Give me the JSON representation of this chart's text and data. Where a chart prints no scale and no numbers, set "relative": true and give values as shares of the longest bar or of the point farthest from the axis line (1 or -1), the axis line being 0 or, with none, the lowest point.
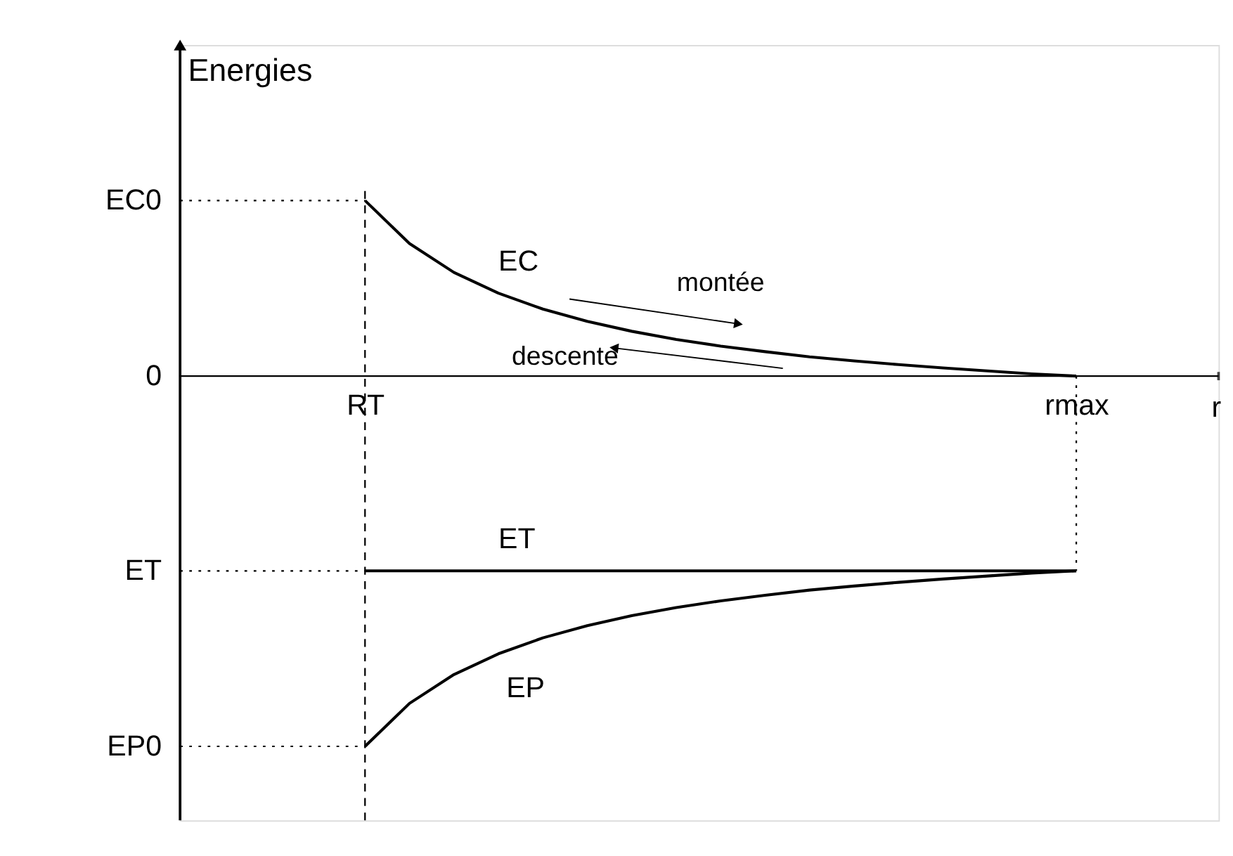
{
  "chart_data": {
    "type": "line",
    "relative": true,
    "ylabel": "Energies",
    "xlabel": "r",
    "line_style": "solid",
    "marker": "none",
    "grid": false,
    "categories": [
      "RT",
      null,
      null,
      null,
      null,
      null,
      null,
      null,
      null,
      null,
      null,
      null,
      null,
      null,
      null,
      null,
      "rmax"
    ],
    "series": [
      {
        "name": "EC",
        "color": "#000000",
        "values": [
          0.474,
          0.358,
          0.28,
          0.224,
          0.181,
          0.148,
          0.121,
          0.099,
          0.081,
          0.066,
          0.052,
          0.041,
          0.031,
          0.022,
          0.014,
          0.006,
          0
        ]
      },
      {
        "name": "ET",
        "color": "#000000",
        "values": [
          -0.526,
          -0.526,
          -0.526,
          -0.526,
          -0.526,
          -0.526,
          -0.526,
          -0.526,
          -0.526,
          -0.526,
          -0.526,
          -0.526,
          -0.526,
          -0.526,
          -0.526,
          -0.526,
          -0.526
        ]
      },
      {
        "name": "EP",
        "color": "#000000",
        "values": [
          -1,
          -0.884,
          -0.806,
          -0.75,
          -0.707,
          -0.674,
          -0.647,
          -0.625,
          -0.607,
          -0.592,
          -0.578,
          -0.567,
          -0.557,
          -0.548,
          -0.54,
          -0.532,
          -0.526
        ]
      }
    ],
    "ref_lines": [
      {
        "axis": "x",
        "value": "RT",
        "line_style": "dashed",
        "color": "#000000"
      },
      {
        "axis": "x",
        "value": "rmax",
        "line_style": "dotted",
        "color": "#000000"
      },
      {
        "axis": "y",
        "value": 0.474,
        "line_style": "dotted",
        "color": "#000000",
        "label": "EC0"
      },
      {
        "axis": "y",
        "value": -0.526,
        "line_style": "dotted",
        "color": "#000000",
        "label": "ET"
      },
      {
        "axis": "y",
        "value": -1,
        "line_style": "dotted",
        "color": "#000000",
        "label": "EP0"
      }
    ],
    "annotations": [
      "0",
      "montée",
      "descente"
    ]
  }
}
